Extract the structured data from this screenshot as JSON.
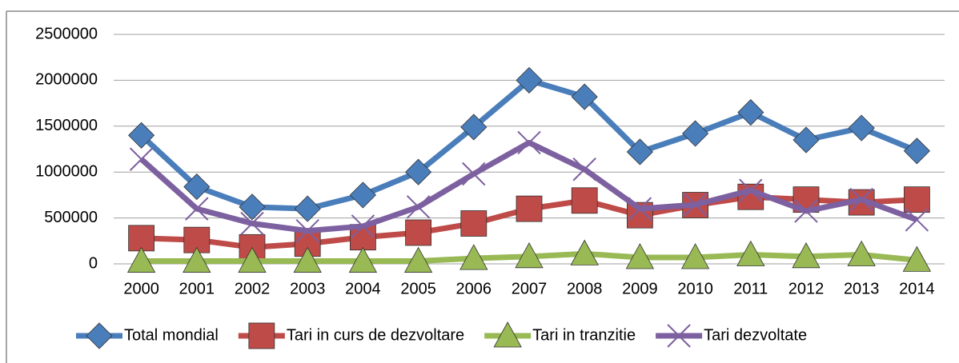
{
  "chart_data": {
    "type": "line",
    "categories": [
      "2000",
      "2001",
      "2002",
      "2003",
      "2004",
      "2005",
      "2006",
      "2007",
      "2008",
      "2009",
      "2010",
      "2011",
      "2012",
      "2013",
      "2014"
    ],
    "series": [
      {
        "name": "Total mondial",
        "color": "#4a7ebb",
        "values": [
          1400000,
          840000,
          620000,
          600000,
          750000,
          1000000,
          1490000,
          2000000,
          1820000,
          1220000,
          1420000,
          1650000,
          1350000,
          1480000,
          1230000
        ]
      },
      {
        "name": "Tari in curs de dezvoltare",
        "color": "#be4b48",
        "values": [
          280000,
          260000,
          180000,
          220000,
          290000,
          340000,
          440000,
          600000,
          690000,
          530000,
          640000,
          730000,
          700000,
          670000,
          700000
        ]
      },
      {
        "name": "Tari in tranzitie",
        "color": "#98b954",
        "values": [
          30000,
          30000,
          30000,
          30000,
          30000,
          30000,
          60000,
          80000,
          110000,
          70000,
          70000,
          100000,
          80000,
          100000,
          40000
        ]
      },
      {
        "name": "Tari dezvoltate",
        "color": "#7d60a0",
        "values": [
          1140000,
          600000,
          440000,
          360000,
          410000,
          620000,
          980000,
          1320000,
          1030000,
          600000,
          645000,
          800000,
          575000,
          700000,
          480000
        ]
      }
    ],
    "ylim": [
      0,
      2500000
    ],
    "yticks": [
      0,
      500000,
      1000000,
      1500000,
      2000000,
      2500000
    ],
    "grid": true,
    "legend": "bottom"
  }
}
